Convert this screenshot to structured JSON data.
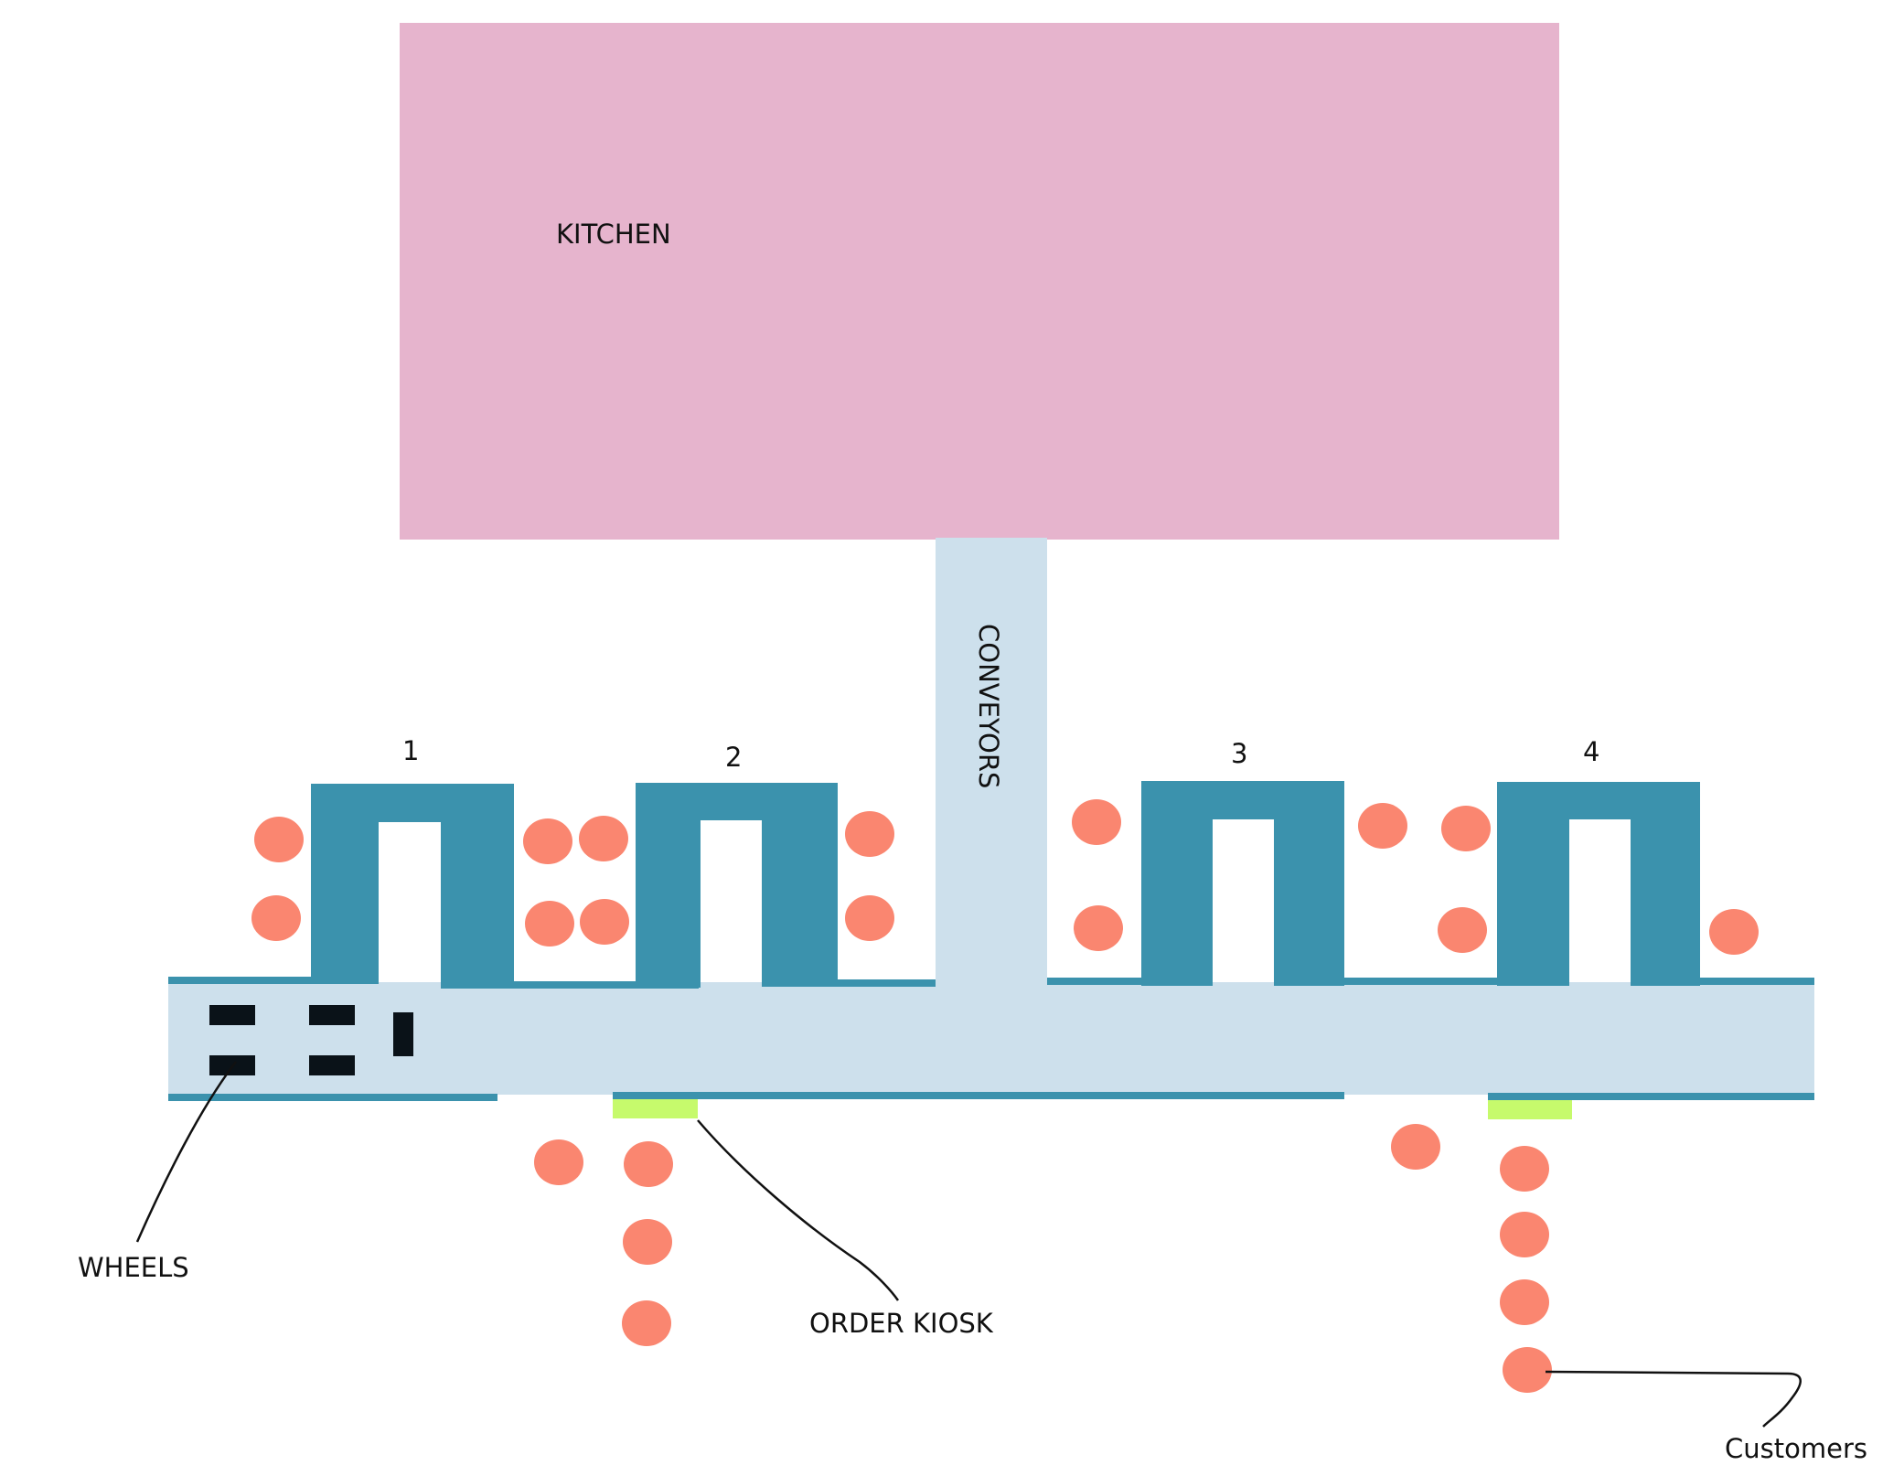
{
  "labels": {
    "kitchen": "KITCHEN",
    "conveyors": "CONVEYORS",
    "wheels": "WHEELS",
    "order_kiosk": "ORDER KIOSK",
    "customers": "Customers"
  },
  "stations": [
    "1",
    "2",
    "3",
    "4"
  ],
  "colors": {
    "kitchen": "#e6b4cd",
    "conveyor": "#cde0ec",
    "station": "#3b92ad",
    "customer": "#fa8670",
    "kiosk": "#c6fa6c",
    "wheel": "#0a1218",
    "line": "#111111"
  }
}
